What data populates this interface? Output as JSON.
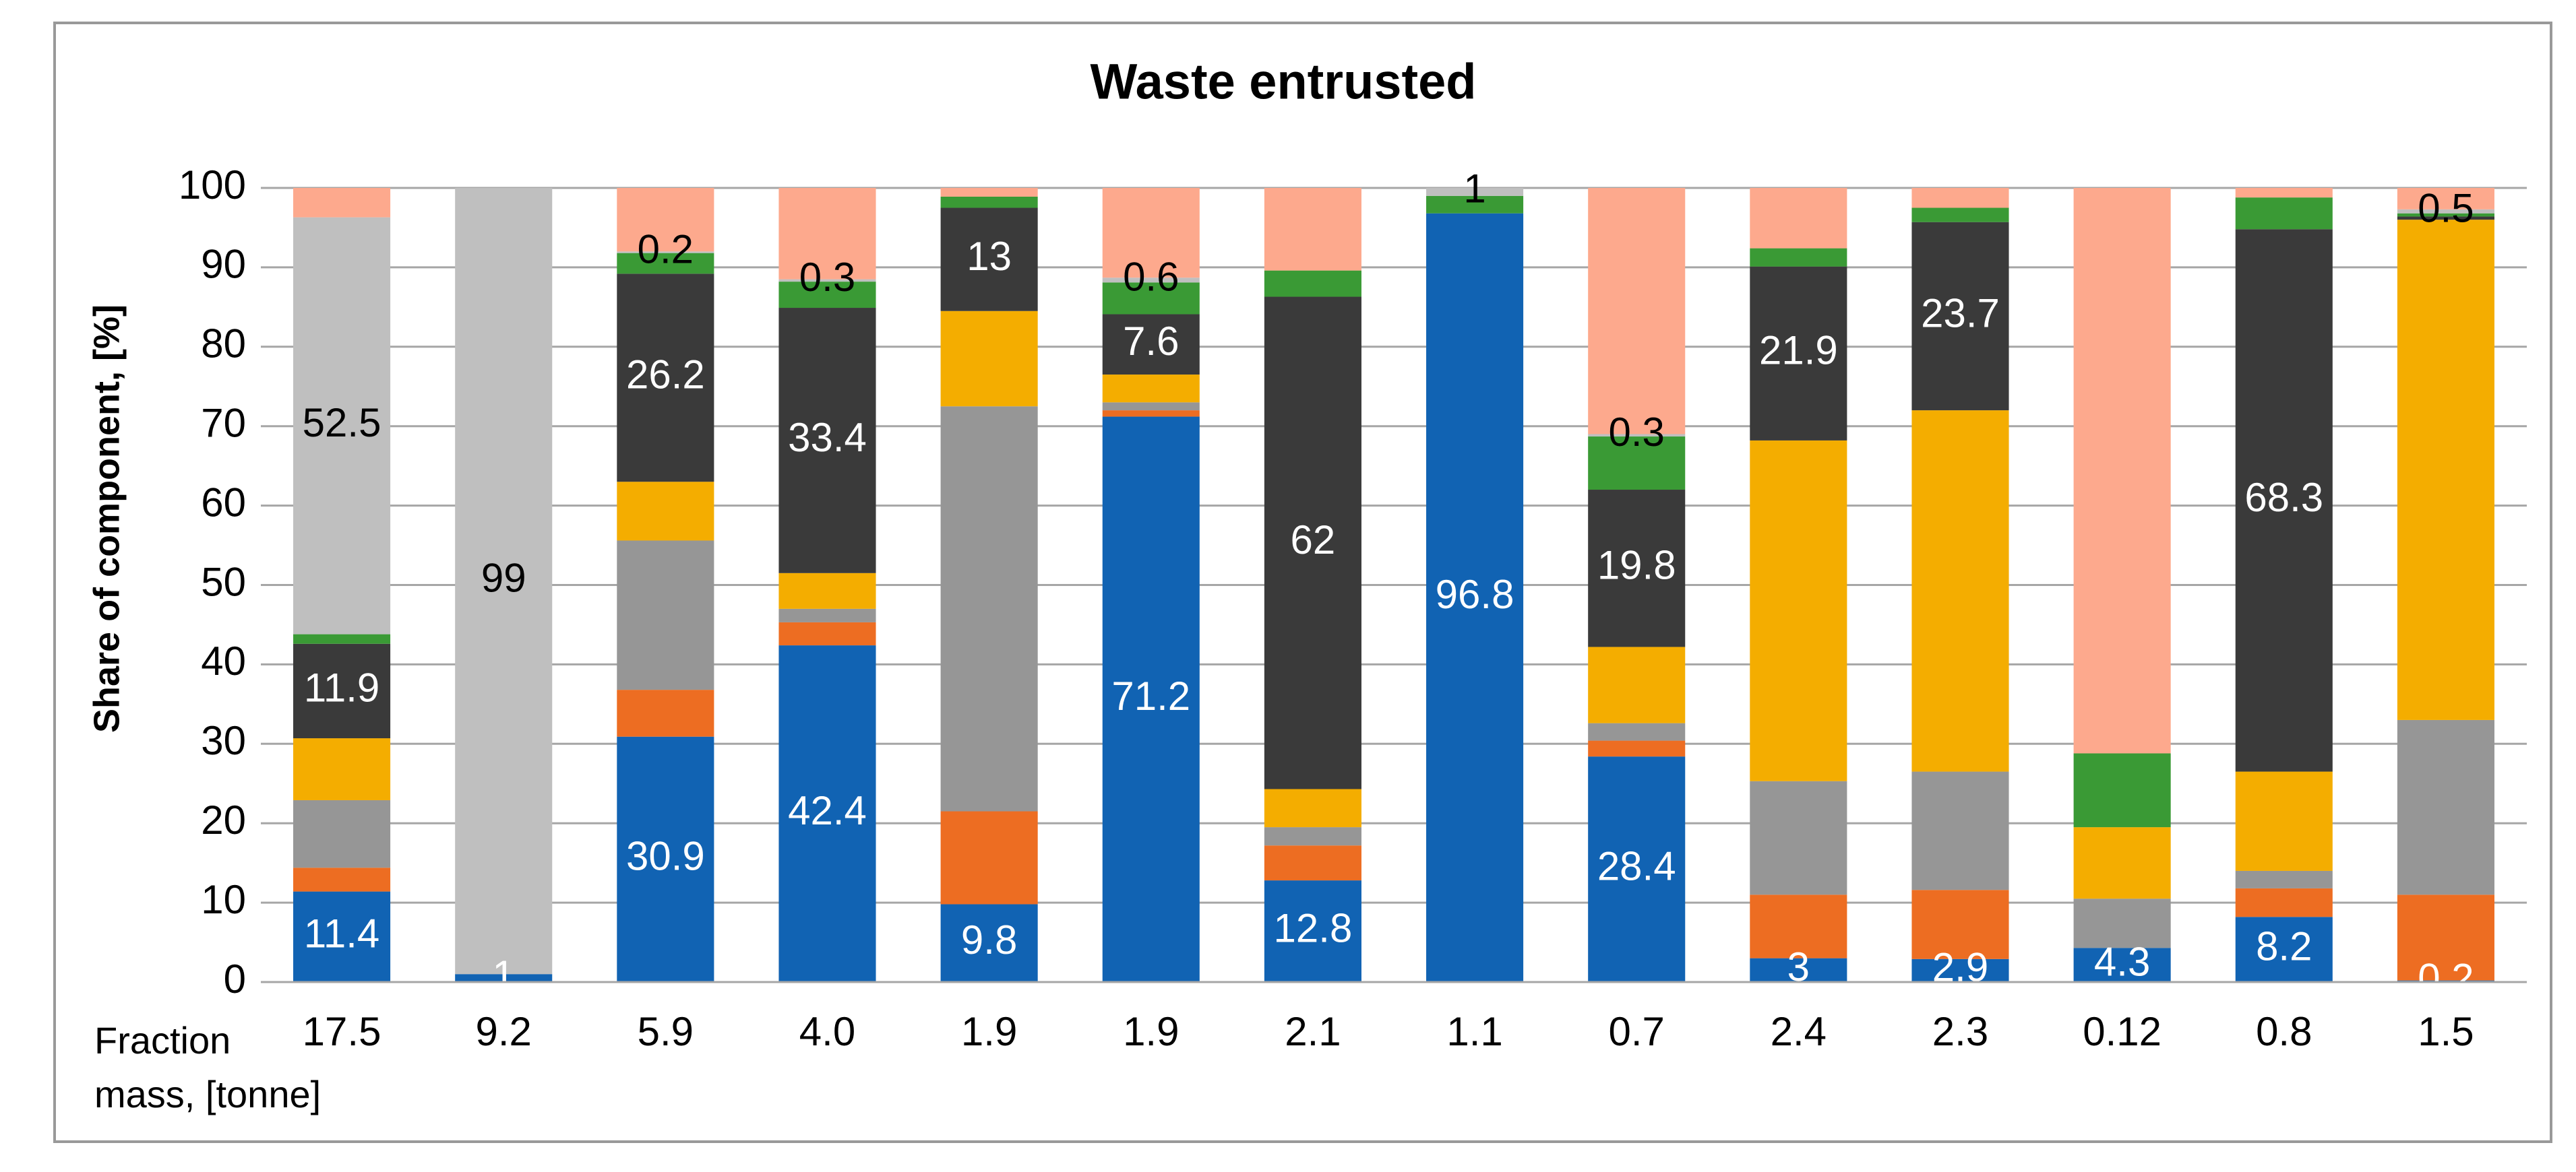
{
  "chart_data": {
    "type": "stacked_bar",
    "title": "Waste entrusted",
    "ylabel": "Share of component, [%]",
    "xlabel": "Fraction mass, [tonne]",
    "categories": [
      "17.5",
      "9.2",
      "5.9",
      "4.0",
      "1.9",
      "1.9",
      "2.1",
      "1.1",
      "0.7",
      "2.4",
      "2.3",
      "0.12",
      "0.8",
      "1.5"
    ],
    "ylim": [
      0,
      100
    ],
    "yticks": [
      0,
      10,
      20,
      30,
      40,
      50,
      60,
      70,
      80,
      90,
      100
    ],
    "grid": true,
    "series": [
      {
        "color": "#1163b3",
        "values": [
          11.4,
          1,
          30.9,
          42.4,
          9.8,
          71.2,
          12.8,
          96.8,
          28.4,
          3,
          2.9,
          4.3,
          8.2,
          0.2
        ],
        "value_labels": [
          "11.4",
          "1",
          "30.9",
          "42.4",
          "9.8",
          "71.2",
          "12.8",
          "96.8",
          "28.4",
          "3",
          "2.9",
          "4.3",
          "8.2",
          "0.2"
        ]
      },
      {
        "color": "#ed6d22",
        "values": [
          3,
          0,
          5.9,
          2.9,
          11.7,
          0.8,
          4.4,
          0,
          2,
          8,
          8.7,
          0,
          3.6,
          10.8
        ]
      },
      {
        "color": "#969696",
        "values": [
          8.5,
          0,
          18.8,
          1.7,
          51,
          1,
          2.3,
          0,
          2.2,
          14.3,
          14.9,
          6.2,
          2.2,
          22
        ]
      },
      {
        "color": "#f4ad00",
        "values": [
          7.8,
          0,
          7.4,
          4.5,
          12,
          3.5,
          4.8,
          0,
          9.6,
          42.9,
          45.5,
          9,
          12.5,
          63
        ]
      },
      {
        "color": "#3a3a3a",
        "values": [
          11.9,
          0,
          26.2,
          33.4,
          13,
          7.6,
          62,
          0,
          19.8,
          21.9,
          23.7,
          0,
          68.3,
          0.4
        ],
        "value_labels": [
          "11.9",
          null,
          "26.2",
          "33.4",
          "13",
          "7.6",
          "62",
          null,
          "19.8",
          "21.9",
          "23.7",
          null,
          "68.3",
          null
        ]
      },
      {
        "color": "#3a9a35",
        "values": [
          1.2,
          0,
          2.6,
          3.3,
          1.4,
          4,
          3.3,
          2.2,
          6.7,
          2.3,
          1.8,
          9.3,
          4,
          0.4
        ]
      },
      {
        "color": "#bfbfbf",
        "values": [
          52.5,
          99,
          0.2,
          0.3,
          0,
          0.6,
          0,
          1,
          0.3,
          0,
          0,
          0,
          0,
          0.5
        ],
        "value_labels": [
          "52.5",
          "99",
          "0.2",
          "0.3",
          null,
          "0.6",
          null,
          "1",
          "0.3",
          null,
          null,
          null,
          null,
          "0.5"
        ]
      },
      {
        "color": "#fda98d",
        "values": [
          3.7,
          0,
          8,
          11.5,
          1.1,
          11.3,
          10.4,
          0,
          31,
          7.6,
          2.5,
          71.2,
          1.2,
          2.7
        ]
      }
    ]
  }
}
